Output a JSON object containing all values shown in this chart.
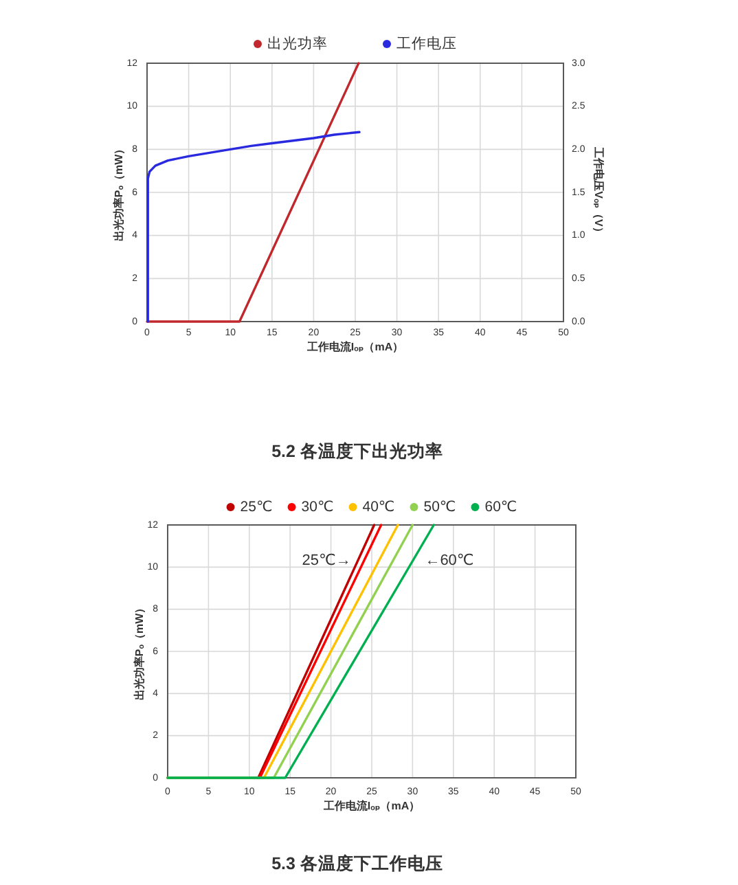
{
  "chart_data": [
    {
      "type": "line",
      "xlabel": "工作电流Iₒₚ（mA）",
      "ylabel": "出光功率Pₒ（mW）",
      "y2label": "工作电压Vₒₚ（V）",
      "xlim": [
        0,
        50
      ],
      "xticks": [
        0,
        5,
        10,
        15,
        20,
        25,
        30,
        35,
        40,
        45,
        50
      ],
      "ylim": [
        0,
        12
      ],
      "yticks": [
        0,
        2,
        4,
        6,
        8,
        10,
        12
      ],
      "y2lim": [
        0,
        3
      ],
      "y2ticks": [
        {
          "value": 0,
          "label": "0.0"
        },
        0.5,
        {
          "value": 1,
          "label": "1.0"
        },
        1.5,
        {
          "value": 2,
          "label": "2.0"
        },
        2.5,
        {
          "value": 3,
          "label": "3.0"
        }
      ],
      "grid": true,
      "legend": "top",
      "series": [
        {
          "name": "出光功率",
          "color": "#c0282d",
          "x": [
            0,
            11.1,
            25.4
          ],
          "values": [
            0,
            0,
            12
          ]
        },
        {
          "name": "工作电压",
          "color": "#2929e0",
          "axis": "y2",
          "x": [
            0.1,
            0.1,
            0.3,
            1,
            2.5,
            5,
            7.5,
            10,
            12.5,
            15,
            17.5,
            20,
            22.5,
            25.5
          ],
          "values": [
            0,
            1.66,
            1.74,
            1.81,
            1.87,
            1.92,
            1.96,
            2.0,
            2.04,
            2.07,
            2.1,
            2.13,
            2.17,
            2.2
          ]
        }
      ]
    },
    {
      "type": "line",
      "title": "5.2 各温度下出光功率",
      "xlabel": "工作电流Iₒₚ（mA）",
      "ylabel": "出光功率Pₒ（mW）",
      "xlim": [
        0,
        50
      ],
      "xticks": [
        0,
        5,
        10,
        15,
        20,
        25,
        30,
        35,
        40,
        45,
        50
      ],
      "ylim": [
        0,
        12
      ],
      "yticks": [
        0,
        2,
        4,
        6,
        8,
        10,
        12
      ],
      "grid": true,
      "legend": "top",
      "annotations": [
        {
          "text": "25℃→",
          "x": 23.3,
          "y": 10.3
        },
        {
          "text": "←60℃",
          "x": 30,
          "y": 10.3
        },
        "5.3 各温度下工作电压"
      ],
      "series": [
        {
          "name": "25℃",
          "color": "#c00000",
          "x": [
            0,
            11.1,
            25.3
          ],
          "values": [
            0,
            0,
            12
          ]
        },
        {
          "name": "30℃",
          "color": "#ff0000",
          "x": [
            0,
            11.3,
            26.15
          ],
          "values": [
            0,
            0,
            12
          ]
        },
        {
          "name": "40℃",
          "color": "#ffc000",
          "x": [
            0,
            11.8,
            28.2
          ],
          "values": [
            0,
            0,
            12
          ]
        },
        {
          "name": "50℃",
          "color": "#92d050",
          "x": [
            0,
            13.0,
            30.0
          ],
          "values": [
            0,
            0,
            12
          ]
        },
        {
          "name": "60℃",
          "color": "#00b050",
          "x": [
            0,
            14.4,
            32.6
          ],
          "values": [
            0,
            0,
            12
          ]
        }
      ]
    }
  ]
}
